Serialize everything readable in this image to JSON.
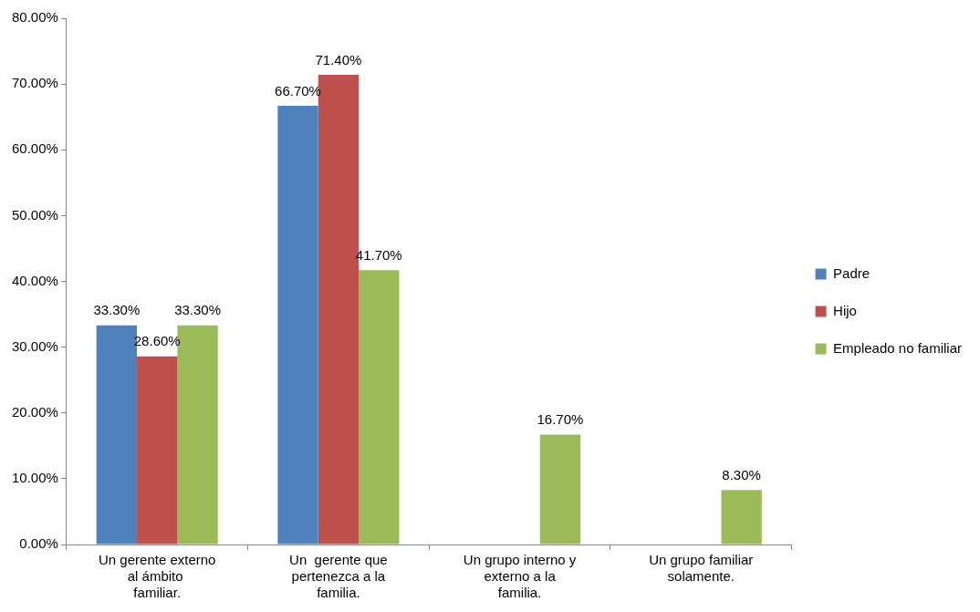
{
  "chart_data": {
    "type": "bar",
    "categories": [
      "Un gerente externo al ámbito  familiar.",
      "Un  gerente que pertenezca a la familia.",
      "Un grupo interno y externo a la familia.",
      "Un grupo familiar solamente."
    ],
    "series": [
      {
        "name": "Padre",
        "color": "#4f81bd",
        "values": [
          33.3,
          66.7,
          null,
          null
        ],
        "value_labels": [
          "33.30%",
          "66.70%",
          null,
          null
        ]
      },
      {
        "name": "Hijo",
        "color": "#c0504d",
        "values": [
          28.6,
          71.4,
          null,
          null
        ],
        "value_labels": [
          "28.60%",
          "71.40%",
          null,
          null
        ]
      },
      {
        "name": "Empleado no familiar",
        "color": "#9bbb59",
        "values": [
          33.3,
          41.7,
          16.7,
          8.3
        ],
        "value_labels": [
          "33.30%",
          "41.70%",
          "16.70%",
          "8.30%"
        ]
      }
    ],
    "ylim": [
      0,
      80
    ],
    "yticks": [
      {
        "value": 0,
        "label": "0.00%"
      },
      {
        "value": 10,
        "label": "10.00%"
      },
      {
        "value": 20,
        "label": "20.00%"
      },
      {
        "value": 30,
        "label": "30.00%"
      },
      {
        "value": 40,
        "label": "40.00%"
      },
      {
        "value": 50,
        "label": "50.00%"
      },
      {
        "value": 60,
        "label": "60.00%"
      },
      {
        "value": 70,
        "label": "70.00%"
      },
      {
        "value": 80,
        "label": "80.00%"
      }
    ],
    "grid": false,
    "legend": "right"
  }
}
